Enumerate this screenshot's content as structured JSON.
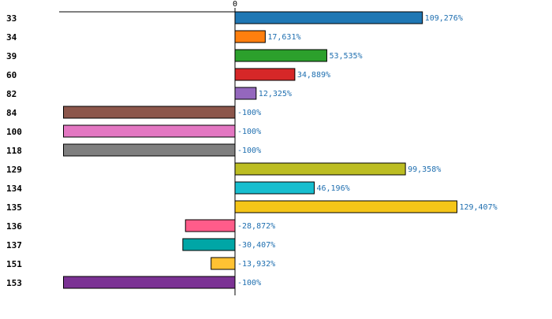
{
  "chart_data": {
    "type": "bar",
    "orientation": "horizontal",
    "title": "",
    "xlabel": "",
    "ylabel": "",
    "xlim": [
      -100,
      135
    ],
    "zero_tick_label": "0",
    "highlight_color": "#cc0000",
    "categories": [
      "33",
      "34",
      "39",
      "60",
      "82",
      "84",
      "100",
      "118",
      "129",
      "134",
      "135",
      "136",
      "137",
      "151",
      "153"
    ],
    "highlighted_category": "135",
    "values": [
      109.276,
      17.631,
      53.535,
      34.889,
      12.325,
      -100,
      -100,
      -100,
      99.358,
      46.196,
      129.407,
      -28.872,
      -30.407,
      -13.932,
      -100
    ],
    "value_labels": [
      "109,276%",
      "17,631%",
      "53,535%",
      "34,889%",
      "12,325%",
      "-100%",
      "-100%",
      "-100%",
      "99,358%",
      "46,196%",
      "129,407%",
      "-28,872%",
      "-30,407%",
      "-13,932%",
      "-100%"
    ],
    "colors": [
      "#1f77b4",
      "#ff7f0e",
      "#2ca02c",
      "#d62728",
      "#9467bd",
      "#8c564b",
      "#e377c2",
      "#7f7f7f",
      "#bcbd22",
      "#17becf",
      "#f5c518",
      "#ff5c8a",
      "#00a6a6",
      "#ffc233",
      "#7b3294"
    ]
  }
}
